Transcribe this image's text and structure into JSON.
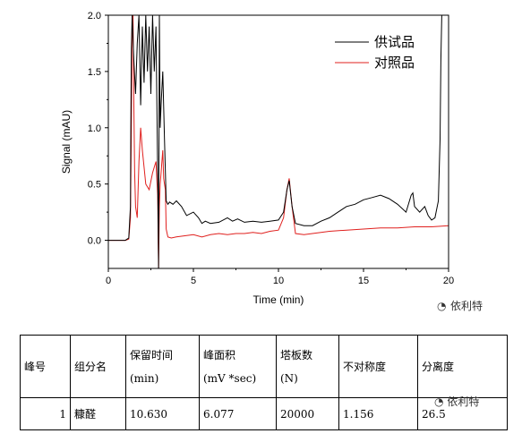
{
  "chart_data": {
    "type": "line",
    "xlabel": "Time (min)",
    "ylabel": "Signal (mAU)",
    "xlim": [
      0,
      20
    ],
    "ylim": [
      -0.25,
      2.0
    ],
    "x_ticks": [
      0,
      5,
      10,
      15,
      20
    ],
    "y_ticks": [
      0.0,
      0.5,
      1.0,
      1.5,
      2.0
    ],
    "x_tick_labels": [
      "0",
      "5",
      "10",
      "15",
      "20"
    ],
    "y_tick_labels": [
      "0.0",
      "0.5",
      "1.0",
      "1.5",
      "2.0"
    ],
    "grid": false,
    "legend_position": "top-right",
    "series": [
      {
        "name": "供试品",
        "color": "#000000",
        "x": [
          0.0,
          1.0,
          1.2,
          1.3,
          1.32,
          1.35,
          1.4,
          1.5,
          1.6,
          1.7,
          1.8,
          1.9,
          2.0,
          2.1,
          2.2,
          2.3,
          2.4,
          2.5,
          2.6,
          2.7,
          2.8,
          2.9,
          2.95,
          3.0,
          3.05,
          3.1,
          3.2,
          3.3,
          3.4,
          3.5,
          3.6,
          3.8,
          4.0,
          4.3,
          4.6,
          5.0,
          5.3,
          5.5,
          5.7,
          6.0,
          6.5,
          7.0,
          7.3,
          7.6,
          8.0,
          8.5,
          9.0,
          9.5,
          10.0,
          10.3,
          10.5,
          10.63,
          10.8,
          11.0,
          11.5,
          12.0,
          12.5,
          13.0,
          13.5,
          14.0,
          14.5,
          15.0,
          15.5,
          16.0,
          16.5,
          17.0,
          17.5,
          17.8,
          17.9,
          18.0,
          18.3,
          18.6,
          18.8,
          19.0,
          19.2,
          19.4,
          19.5,
          19.55,
          19.6
        ],
        "values": [
          0.0,
          0.0,
          0.02,
          0.3,
          1.0,
          1.7,
          2.0,
          1.6,
          1.3,
          1.75,
          2.0,
          1.2,
          1.9,
          1.4,
          2.0,
          1.5,
          1.9,
          1.3,
          2.0,
          1.5,
          1.9,
          0.6,
          -0.25,
          2.0,
          1.0,
          1.2,
          1.5,
          0.9,
          0.35,
          0.32,
          0.34,
          0.32,
          0.35,
          0.3,
          0.22,
          0.25,
          0.2,
          0.15,
          0.17,
          0.15,
          0.16,
          0.2,
          0.17,
          0.19,
          0.16,
          0.17,
          0.16,
          0.17,
          0.18,
          0.25,
          0.45,
          0.53,
          0.3,
          0.15,
          0.13,
          0.13,
          0.17,
          0.2,
          0.25,
          0.3,
          0.32,
          0.36,
          0.38,
          0.4,
          0.37,
          0.32,
          0.25,
          0.4,
          0.42,
          0.3,
          0.25,
          0.3,
          0.22,
          0.18,
          0.2,
          0.35,
          0.9,
          1.6,
          2.0
        ]
      },
      {
        "name": "对照品",
        "color": "#e0201e",
        "x": [
          0.0,
          1.0,
          1.2,
          1.3,
          1.35,
          1.4,
          1.45,
          1.5,
          1.55,
          1.6,
          1.7,
          1.8,
          1.9,
          2.0,
          2.2,
          2.4,
          2.6,
          2.8,
          2.9,
          2.95,
          3.0,
          3.05,
          3.1,
          3.2,
          3.25,
          3.3,
          3.35,
          3.4,
          3.5,
          3.7,
          4.0,
          4.5,
          5.0,
          5.5,
          6.0,
          6.5,
          7.0,
          7.5,
          8.0,
          8.5,
          9.0,
          9.5,
          10.0,
          10.3,
          10.5,
          10.63,
          10.8,
          11.0,
          11.5,
          12.0,
          12.5,
          13.0,
          14.0,
          15.0,
          16.0,
          17.0,
          18.0,
          19.0,
          20.0
        ],
        "values": [
          0.0,
          0.0,
          0.01,
          0.2,
          1.0,
          2.0,
          2.0,
          1.2,
          0.6,
          0.3,
          0.2,
          0.7,
          1.0,
          0.8,
          0.5,
          0.45,
          0.6,
          0.7,
          0.4,
          -0.25,
          0.3,
          0.5,
          0.6,
          0.8,
          0.55,
          0.5,
          0.45,
          0.1,
          0.03,
          0.02,
          0.03,
          0.04,
          0.05,
          0.03,
          0.05,
          0.06,
          0.05,
          0.06,
          0.06,
          0.07,
          0.06,
          0.08,
          0.09,
          0.2,
          0.45,
          0.55,
          0.3,
          0.06,
          0.05,
          0.06,
          0.07,
          0.08,
          0.09,
          0.1,
          0.11,
          0.11,
          0.12,
          0.12,
          0.13
        ]
      }
    ]
  },
  "watermark": {
    "chart": "依利特",
    "table": "依利特"
  },
  "table": {
    "headers": [
      {
        "line1": "峰号",
        "line2": ""
      },
      {
        "line1": "组分名",
        "line2": ""
      },
      {
        "line1": "保留时间",
        "line2": "(min)"
      },
      {
        "line1": "峰面积",
        "line2": "(mV *sec)"
      },
      {
        "line1": "塔板数",
        "line2": "(N)"
      },
      {
        "line1": "不对称度",
        "line2": ""
      },
      {
        "line1": "分离度",
        "line2": ""
      }
    ],
    "rows": [
      [
        "1",
        "糠醛",
        "10.630",
        "6.077",
        "20000",
        "1.156",
        "26.5"
      ]
    ]
  }
}
